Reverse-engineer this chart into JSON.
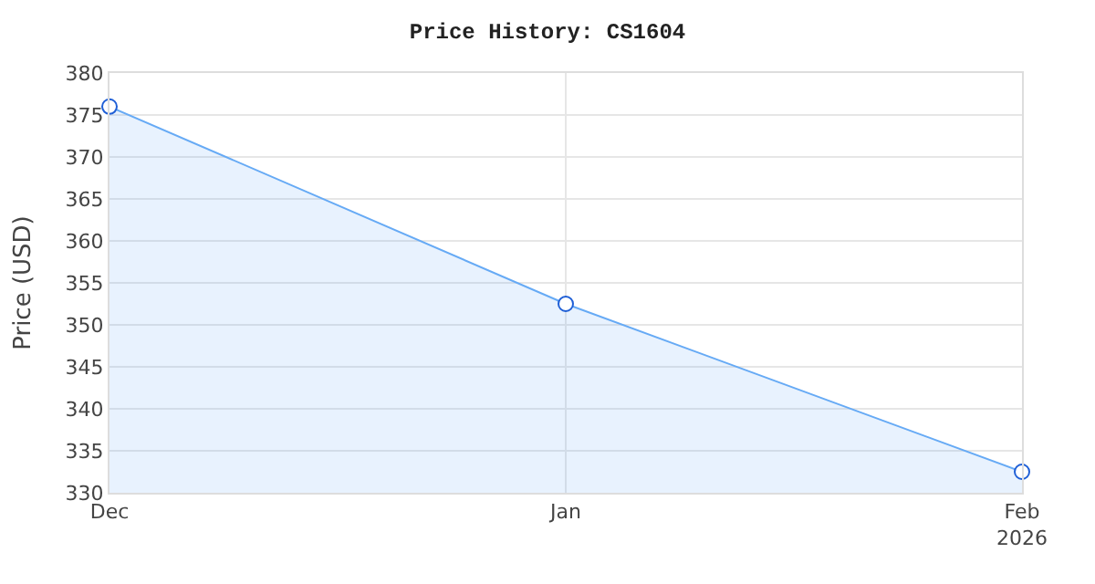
{
  "chart_data": {
    "type": "area",
    "title": "Price History: CS1604",
    "ylabel": "Price (USD)",
    "x": [
      "2025-12-01",
      "2026-01-01",
      "2026-02-01"
    ],
    "series": [
      {
        "color": "#66aaf5",
        "values": [
          376,
          352.5,
          332.5
        ]
      }
    ],
    "xlim": [
      "2025-12-01",
      "2026-02-01"
    ],
    "xticks": [
      {
        "value": "2025-12-01",
        "label": "Dec"
      },
      {
        "value": "2026-01-01",
        "label": "Jan"
      },
      {
        "value": "2026-02-01",
        "label": "Feb\n2026"
      }
    ],
    "ylim": [
      330,
      380
    ],
    "yticks": [
      330,
      335,
      340,
      345,
      350,
      355,
      360,
      365,
      370,
      375,
      380
    ],
    "grid": true,
    "marker": "circle",
    "line_style": "solid"
  }
}
